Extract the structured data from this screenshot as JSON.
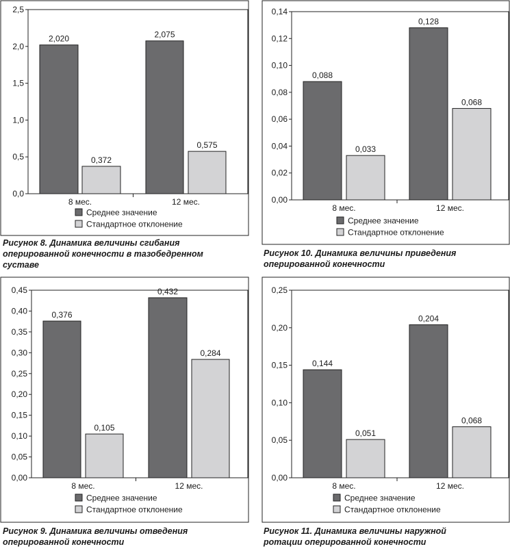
{
  "colors": {
    "mean": "#6b6b6d",
    "std": "#d3d3d5",
    "frame": "#222222"
  },
  "legend_labels": [
    "Среднее значение",
    "Стандартное отклонение"
  ],
  "captions": {
    "fig8": [
      "Рисунок 8. Динамика величины сгибания",
      "оперированной конечности в тазобедренном",
      "суставе"
    ],
    "fig10": [
      "Рисунок 10. Динамика величины приведения",
      "оперированной конечности"
    ],
    "fig9": [
      "Рисунок 9. Динамика величины отведения",
      "оперированной конечности"
    ],
    "fig11": [
      "Рисунок 11. Динамика величины наружной",
      "ротации оперированной конечности"
    ]
  },
  "chart_data": [
    {
      "id": "fig8",
      "type": "bar",
      "categories": [
        "8 мес.",
        "12 мес."
      ],
      "series": [
        {
          "name": "Среднее значение",
          "values": [
            2.02,
            2.075
          ],
          "labels": [
            "2,020",
            "2,075"
          ]
        },
        {
          "name": "Стандартное отклонение",
          "values": [
            0.372,
            0.575
          ],
          "labels": [
            "0,372",
            "0,575"
          ]
        }
      ],
      "ylim": [
        0,
        2.5
      ],
      "yticks": [
        "0,0",
        "0,5",
        "1,0",
        "1,5",
        "2,0",
        "2,5"
      ],
      "legend": "bottom"
    },
    {
      "id": "fig10",
      "type": "bar",
      "categories": [
        "8 мес.",
        "12 мес."
      ],
      "series": [
        {
          "name": "Среднее значение",
          "values": [
            0.088,
            0.128
          ],
          "labels": [
            "0,088",
            "0,128"
          ]
        },
        {
          "name": "Стандартное отклонение",
          "values": [
            0.033,
            0.068
          ],
          "labels": [
            "0,033",
            "0,068"
          ]
        }
      ],
      "ylim": [
        0,
        0.14
      ],
      "yticks": [
        "0,00",
        "0,02",
        "0,04",
        "0,06",
        "0,08",
        "0,10",
        "0,12",
        "0,14"
      ],
      "legend": "bottom"
    },
    {
      "id": "fig9",
      "type": "bar",
      "categories": [
        "8 мес.",
        "12 мес."
      ],
      "series": [
        {
          "name": "Среднее значение",
          "values": [
            0.376,
            0.432
          ],
          "labels": [
            "0,376",
            "0,432"
          ]
        },
        {
          "name": "Стандартное отклонение",
          "values": [
            0.105,
            0.284
          ],
          "labels": [
            "0,105",
            "0,284"
          ]
        }
      ],
      "ylim": [
        0,
        0.45
      ],
      "yticks": [
        "0,00",
        "0,05",
        "0,10",
        "0,15",
        "0,20",
        "0,25",
        "0,30",
        "0,35",
        "0,40",
        "0,45"
      ],
      "legend": "bottom"
    },
    {
      "id": "fig11",
      "type": "bar",
      "categories": [
        "8 мес.",
        "12 мес."
      ],
      "series": [
        {
          "name": "Среднее значение",
          "values": [
            0.144,
            0.204
          ],
          "labels": [
            "0,144",
            "0,204"
          ]
        },
        {
          "name": "Стандартное отклонение",
          "values": [
            0.051,
            0.068
          ],
          "labels": [
            "0,051",
            "0,068"
          ]
        }
      ],
      "ylim": [
        0,
        0.25
      ],
      "yticks": [
        "0,00",
        "0,05",
        "0,10",
        "0,15",
        "0,20",
        "0,25"
      ],
      "legend": "bottom"
    }
  ]
}
